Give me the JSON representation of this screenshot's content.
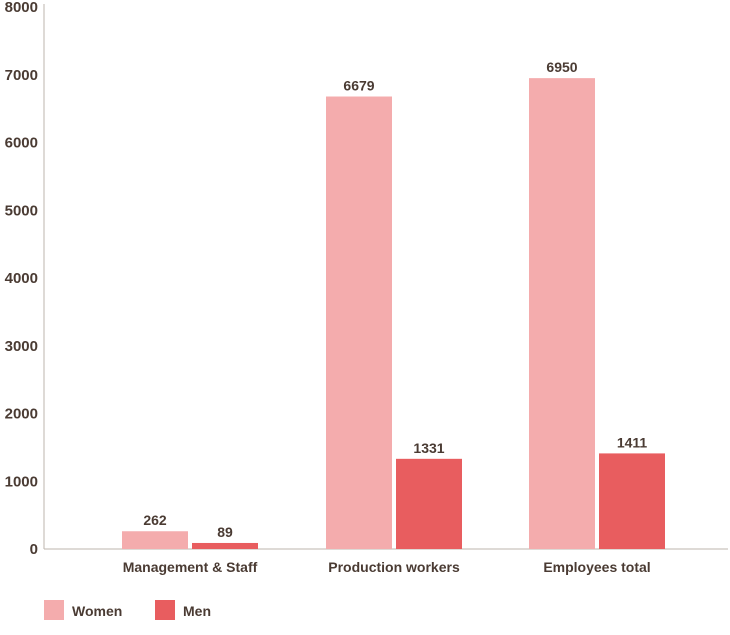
{
  "chart_data": {
    "type": "bar",
    "title": "",
    "xlabel": "",
    "ylabel": "",
    "ylim": [
      0,
      8000
    ],
    "yticks": [
      0,
      1000,
      2000,
      3000,
      4000,
      5000,
      6000,
      7000,
      8000
    ],
    "categories": [
      "Management & Staff",
      "Production workers",
      "Employees total"
    ],
    "series": [
      {
        "name": "Women",
        "values": [
          262,
          6679,
          6950
        ],
        "color": "#f4acad"
      },
      {
        "name": "Men",
        "values": [
          89,
          1331,
          1411
        ],
        "color": "#e85d5f"
      }
    ],
    "grid": false,
    "legend": "bottom-left",
    "axis_color": "#bdb5ae",
    "text_color": "#4a3b33"
  }
}
